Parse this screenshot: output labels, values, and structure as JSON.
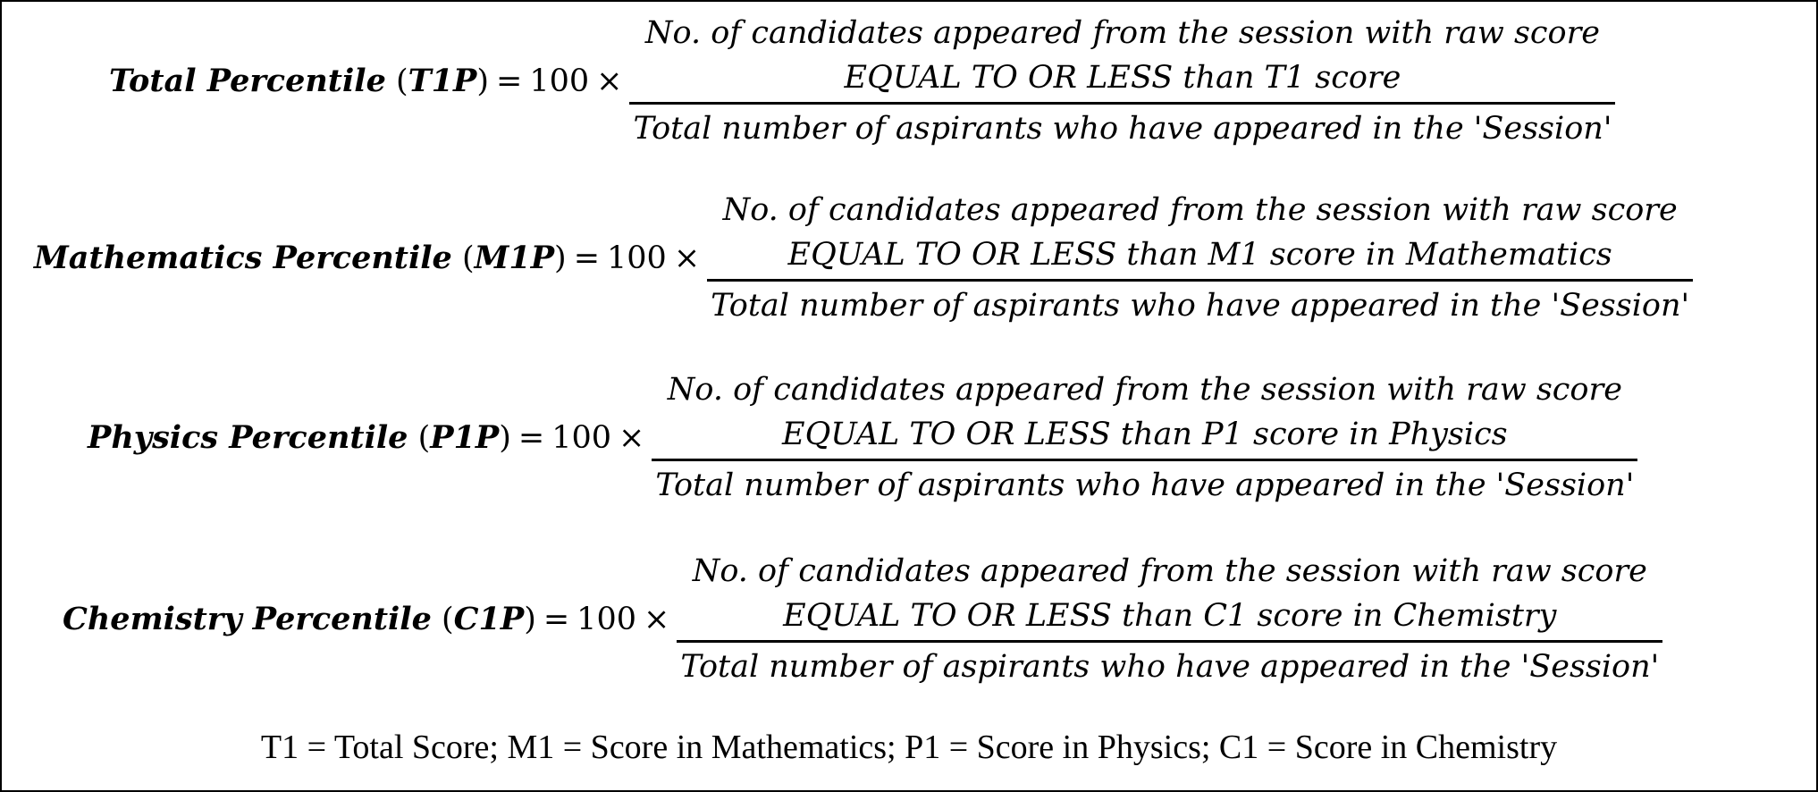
{
  "equations": [
    {
      "name": "Total Percentile",
      "symbol": "T1P",
      "multiplier": "100",
      "numerator_line1": "No. of candidates appeared from the session with raw score",
      "numerator_line2": "EQUAL TO OR LESS than T1 score",
      "denominator": "Total number of aspirants who have appeared in the 'Session'"
    },
    {
      "name": "Mathematics Percentile",
      "symbol": "M1P",
      "multiplier": "100",
      "numerator_line1": "No. of candidates appeared from the session with raw score",
      "numerator_line2": "EQUAL TO OR LESS than M1 score in Mathematics",
      "denominator": "Total number of aspirants who have appeared in the 'Session'"
    },
    {
      "name": "Physics Percentile",
      "symbol": "P1P",
      "multiplier": "100",
      "numerator_line1": "No. of candidates appeared from the session with raw score",
      "numerator_line2": "EQUAL TO OR LESS than P1 score in Physics",
      "denominator": "Total number of aspirants who have appeared in the 'Session'"
    },
    {
      "name": "Chemistry Percentile",
      "symbol": "C1P",
      "multiplier": "100",
      "numerator_line1": "No. of candidates appeared from the session with raw score",
      "numerator_line2": "EQUAL TO OR LESS than C1 score in Chemistry",
      "denominator": "Total number of aspirants who have appeared in the 'Session'"
    }
  ],
  "footnote": "T1 = Total Score; M1 = Score in Mathematics; P1 = Score in Physics; C1 = Score in Chemistry"
}
